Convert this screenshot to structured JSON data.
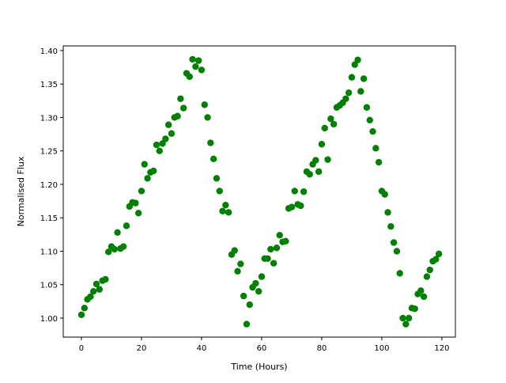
{
  "chart_data": {
    "type": "scatter",
    "xlabel": "Time (Hours)",
    "ylabel": "Normalised Flux",
    "color": "#008000",
    "x": [
      0,
      1,
      2,
      3,
      4,
      5,
      6,
      7,
      8,
      9,
      10,
      11,
      12,
      13,
      14,
      15,
      16,
      17,
      18,
      19,
      20,
      21,
      22,
      23,
      24,
      25,
      26,
      27,
      28,
      29,
      30,
      31,
      32,
      33,
      34,
      35,
      36,
      37,
      38,
      39,
      40,
      41,
      42,
      43,
      44,
      45,
      46,
      47,
      48,
      49,
      50,
      51,
      52,
      53,
      54,
      55,
      56,
      57,
      58,
      59,
      60,
      61,
      62,
      63,
      64,
      65,
      66,
      67,
      68,
      69,
      70,
      71,
      72,
      73,
      74,
      75,
      76,
      77,
      78,
      79,
      80,
      81,
      82,
      83,
      84,
      85,
      86,
      87,
      88,
      89,
      90,
      91,
      92,
      93,
      94,
      95,
      96,
      97,
      98,
      99,
      100,
      101,
      102,
      103,
      104,
      105,
      106,
      107,
      108,
      109,
      110,
      111,
      112,
      113,
      114,
      115,
      116,
      117,
      118,
      119
    ],
    "values": [
      1.005,
      1.015,
      1.028,
      1.032,
      1.04,
      1.051,
      1.043,
      1.056,
      1.058,
      1.099,
      1.107,
      1.103,
      1.128,
      1.104,
      1.107,
      1.138,
      1.167,
      1.173,
      1.172,
      1.157,
      1.19,
      1.23,
      1.209,
      1.218,
      1.22,
      1.259,
      1.25,
      1.261,
      1.268,
      1.289,
      1.276,
      1.3,
      1.302,
      1.328,
      1.314,
      1.366,
      1.361,
      1.387,
      1.376,
      1.385,
      1.371,
      1.319,
      1.3,
      1.262,
      1.238,
      1.209,
      1.19,
      1.16,
      1.169,
      1.158,
      1.095,
      1.101,
      1.07,
      1.081,
      1.033,
      0.991,
      1.02,
      1.046,
      1.052,
      1.04,
      1.062,
      1.089,
      1.089,
      1.103,
      1.082,
      1.105,
      1.124,
      1.114,
      1.115,
      1.164,
      1.166,
      1.19,
      1.17,
      1.168,
      1.189,
      1.219,
      1.215,
      1.23,
      1.236,
      1.219,
      1.26,
      1.284,
      1.237,
      1.298,
      1.29,
      1.315,
      1.318,
      1.322,
      1.328,
      1.337,
      1.36,
      1.379,
      1.386,
      1.339,
      1.358,
      1.315,
      1.296,
      1.279,
      1.254,
      1.233,
      1.19,
      1.185,
      1.158,
      1.137,
      1.113,
      1.1,
      1.067,
      1.0,
      0.991,
      1.0,
      1.015,
      1.014,
      1.036,
      1.041,
      1.032,
      1.062,
      1.072,
      1.085,
      1.088,
      1.096
    ],
    "xlim": [
      -6.05,
      124.5
    ],
    "ylim": [
      0.9716,
      1.407
    ],
    "xticks": [
      0,
      20,
      40,
      60,
      80,
      100,
      120
    ],
    "yticks": [
      {
        "value": 1.0,
        "label": "1.00"
      },
      1.05,
      {
        "value": 1.1,
        "label": "1.10"
      },
      1.15,
      {
        "value": 1.2,
        "label": "1.20"
      },
      1.25,
      {
        "value": 1.3,
        "label": "1.30"
      },
      1.35,
      {
        "value": 1.4,
        "label": "1.40"
      }
    ]
  }
}
